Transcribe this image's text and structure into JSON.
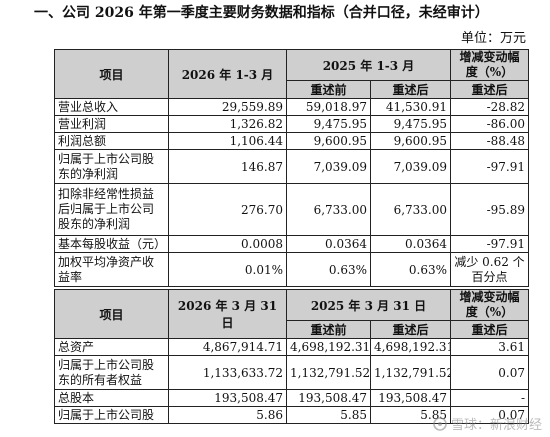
{
  "heading": "一、公司 2026 年第一季度主要财务数据和指标（合并口径，未经审计）",
  "unit": "单位：万元",
  "table1": {
    "header": {
      "item": "项目",
      "current_period": "2026 年 1-3 月",
      "prior_period": "2025 年 1-3 月",
      "change": "增减变动幅度（%）",
      "before_restate": "重述前",
      "after_restate": "重述后",
      "change_after": "重述后"
    },
    "rows": [
      {
        "item": "营业总收入",
        "current": "29,559.89",
        "before": "59,018.97",
        "after": "41,530.91",
        "change": "-28.82"
      },
      {
        "item": "营业利润",
        "current": "1,326.82",
        "before": "9,475.95",
        "after": "9,475.95",
        "change": "-86.00"
      },
      {
        "item": "利润总额",
        "current": "1,106.44",
        "before": "9,600.95",
        "after": "9,600.95",
        "change": "-88.48"
      },
      {
        "item": "归属于上市公司股东的净利润",
        "current": "146.87",
        "before": "7,039.09",
        "after": "7,039.09",
        "change": "-97.91"
      },
      {
        "item": "扣除非经常性损益后归属于上市公司股东的净利润",
        "current": "276.70",
        "before": "6,733.00",
        "after": "6,733.00",
        "change": "-95.89"
      },
      {
        "item": "基本每股收益（元）",
        "current": "0.0008",
        "before": "0.0364",
        "after": "0.0364",
        "change": "-97.91"
      },
      {
        "item": "加权平均净资产收益率",
        "current": "0.01%",
        "before": "0.63%",
        "after": "0.63%",
        "change": "减少 0.62 个百分点"
      }
    ]
  },
  "table2": {
    "header": {
      "item": "项目",
      "current_period": "2026 年 3 月 31 日",
      "prior_period": "2025 年 3 月 31 日",
      "change": "增减变动幅度（%）",
      "before_restate": "重述前",
      "after_restate": "重述后",
      "change_after": "重述后"
    },
    "rows": [
      {
        "item": "总资产",
        "current": "4,867,914.71",
        "before": "4,698,192.31",
        "after": "4,698,192.31",
        "change": "3.61"
      },
      {
        "item": "归属于上市公司股东的所有者权益",
        "current": "1,133,633.72",
        "before": "1,132,791.52",
        "after": "1,132,791.52",
        "change": "0.07"
      },
      {
        "item": "总股本",
        "current": "193,508.47",
        "before": "193,508.47",
        "after": "193,508.47",
        "change": "-"
      },
      {
        "item": "归属于上市公司股",
        "current": "5.86",
        "before": "5.85",
        "after": "5.85",
        "change": "0.07"
      }
    ]
  },
  "watermark": "雪球：新浪财经",
  "watermark_icon": "snowball-logo-icon"
}
